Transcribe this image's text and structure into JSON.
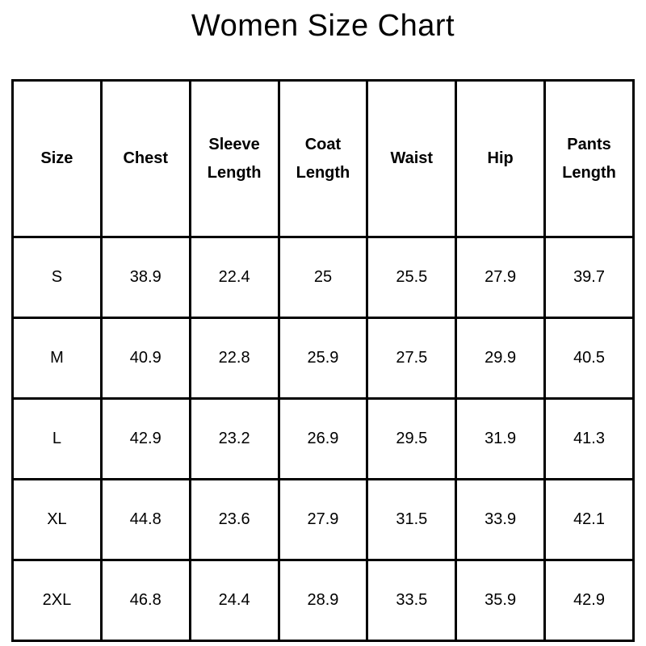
{
  "title": "Women Size Chart",
  "table": {
    "columns": [
      "Size",
      "Chest",
      "Sleeve Length",
      "Coat Length",
      "Waist",
      "Hip",
      "Pants Length"
    ],
    "rows": [
      {
        "cells": [
          "S",
          "38.9",
          "22.4",
          "25",
          "25.5",
          "27.9",
          "39.7"
        ]
      },
      {
        "cells": [
          "M",
          "40.9",
          "22.8",
          "25.9",
          "27.5",
          "29.9",
          "40.5"
        ]
      },
      {
        "cells": [
          "L",
          "42.9",
          "23.2",
          "26.9",
          "29.5",
          "31.9",
          "41.3"
        ]
      },
      {
        "cells": [
          "XL",
          "44.8",
          "23.6",
          "27.9",
          "31.5",
          "33.9",
          "42.1"
        ]
      },
      {
        "cells": [
          "2XL",
          "46.8",
          "24.4",
          "28.9",
          "33.5",
          "35.9",
          "42.9"
        ]
      }
    ]
  },
  "colors": {
    "text": "#000000",
    "border": "#000000",
    "background": "#ffffff"
  },
  "chart_data": {
    "type": "table",
    "title": "Women Size Chart",
    "columns": [
      "Size",
      "Chest",
      "Sleeve Length",
      "Coat Length",
      "Waist",
      "Hip",
      "Pants Length"
    ],
    "rows": [
      [
        "S",
        38.9,
        22.4,
        25,
        25.5,
        27.9,
        39.7
      ],
      [
        "M",
        40.9,
        22.8,
        25.9,
        27.5,
        29.9,
        40.5
      ],
      [
        "L",
        42.9,
        23.2,
        26.9,
        29.5,
        31.9,
        41.3
      ],
      [
        "XL",
        44.8,
        23.6,
        27.9,
        31.5,
        33.9,
        42.1
      ],
      [
        "2XL",
        46.8,
        24.4,
        28.9,
        33.5,
        35.9,
        42.9
      ]
    ]
  }
}
